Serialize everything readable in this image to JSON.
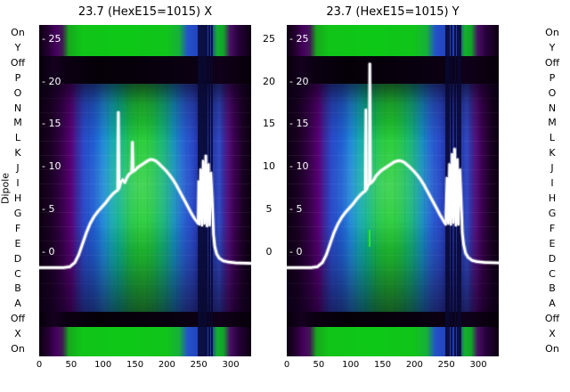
{
  "titles": {
    "left": "23.7 (HexE15=1015) X",
    "right": "23.7 (HexE15=1015) Y"
  },
  "axis": {
    "dipole_label": "Dipole",
    "row_labels": [
      "On",
      "Y",
      "Off",
      "P",
      "O",
      "N",
      "M",
      "L",
      "K",
      "J",
      "I",
      "H",
      "G",
      "F",
      "E",
      "D",
      "C",
      "B",
      "A",
      "Off",
      "X",
      "On"
    ],
    "inner_tick_labels": [
      "- 25",
      "- 20",
      "- 15",
      "- 10",
      "- 5",
      "- 0"
    ],
    "mid_tick_labels": [
      "25",
      "20",
      "15",
      "10",
      "5",
      "0"
    ],
    "value_ticks": [
      25,
      20,
      15,
      10,
      5,
      0
    ],
    "x_ticks": [
      0,
      50,
      100,
      150,
      200,
      250,
      300
    ],
    "x_tick_labels": [
      "0",
      "50",
      "100",
      "150",
      "200",
      "250",
      "300"
    ]
  },
  "colors": {
    "background": "#ffffff",
    "text": "#000000",
    "curve": "#ffffff",
    "inner_tick_text": "#ffffff",
    "cmap_black": "#0a000e",
    "cmap_purple": "#5a0078",
    "cmap_blue": "#2a49c8",
    "cmap_cyan": "#12a4b4",
    "cmap_green": "#1ec832",
    "green_mark": "#2ae62a"
  },
  "chart_data": [
    {
      "type": "heatmap+line",
      "panel": "X",
      "title": "23.7 (HexE15=1015) X",
      "x_range": [
        0,
        332
      ],
      "ylim": [
        -12.3,
        26.6
      ],
      "x_ticks": [
        0,
        50,
        100,
        150,
        200,
        250,
        300
      ],
      "value_ticks": [
        0,
        5,
        10,
        15,
        20,
        25
      ],
      "rows_top_to_bottom": [
        "On",
        "Y",
        "Off",
        "P",
        "O",
        "N",
        "M",
        "L",
        "K",
        "J",
        "I",
        "H",
        "G",
        "F",
        "E",
        "D",
        "C",
        "B",
        "A",
        "Off",
        "X",
        "On"
      ],
      "colormap": "nipy_spectral-like (black-purple-blue-cyan-green)",
      "heatmap_bands": [
        {
          "rows": "On,Y (top)",
          "description": "bright green 55<x<235, blue 240<x<272, green 275<x<288, purple/black edges"
        },
        {
          "rows": "Off (top)",
          "description": "near black"
        },
        {
          "rows": "P..A",
          "description": "broad blob: black/purple edges, blue flanks, cyan 100<x<135, green core 135<x<210, blue 210<x<245, dark columns 248<x<272, purple 285<x<305"
        },
        {
          "rows": "Off (bottom)",
          "description": "near black"
        },
        {
          "rows": "X,On (bottom)",
          "description": "bright green 60<x<235, blue 240<x<272, purple/black edges"
        }
      ],
      "dark_columns_x": [
        249,
        253,
        257,
        261,
        266,
        270
      ],
      "line": {
        "name": "beam profile X",
        "color": "#ffffff",
        "points": [
          [
            0,
            -1.9
          ],
          [
            38,
            -1.9
          ],
          [
            48,
            -1.8
          ],
          [
            56,
            -1.3
          ],
          [
            62,
            -0.4
          ],
          [
            68,
            0.9
          ],
          [
            74,
            2.2
          ],
          [
            80,
            3.3
          ],
          [
            86,
            4.1
          ],
          [
            92,
            4.7
          ],
          [
            98,
            5.2
          ],
          [
            104,
            5.7
          ],
          [
            110,
            6.3
          ],
          [
            116,
            6.8
          ],
          [
            121,
            7.1
          ],
          [
            123,
            7.2
          ],
          [
            124,
            16.3
          ],
          [
            125,
            7.4
          ],
          [
            128,
            8.2
          ],
          [
            131,
            8.4
          ],
          [
            134,
            8.1
          ],
          [
            137,
            8.6
          ],
          [
            140,
            9.0
          ],
          [
            143,
            9.2
          ],
          [
            145,
            9.3
          ],
          [
            146,
            12.8
          ],
          [
            147,
            9.4
          ],
          [
            151,
            9.6
          ],
          [
            155,
            9.9
          ],
          [
            159,
            10.1
          ],
          [
            163,
            10.3
          ],
          [
            167,
            10.5
          ],
          [
            171,
            10.7
          ],
          [
            175,
            10.8
          ],
          [
            179,
            10.75
          ],
          [
            183,
            10.6
          ],
          [
            187,
            10.35
          ],
          [
            191,
            10.05
          ],
          [
            195,
            9.75
          ],
          [
            199,
            9.45
          ],
          [
            204,
            9.0
          ],
          [
            209,
            8.5
          ],
          [
            214,
            7.9
          ],
          [
            219,
            7.2
          ],
          [
            224,
            6.5
          ],
          [
            229,
            5.8
          ],
          [
            234,
            5.1
          ],
          [
            239,
            4.4
          ],
          [
            243,
            3.9
          ],
          [
            247,
            3.5
          ],
          [
            249,
            3.3
          ],
          [
            250,
            8.2
          ],
          [
            251,
            3.2
          ],
          [
            253,
            9.6
          ],
          [
            255,
            3.1
          ],
          [
            257,
            10.6
          ],
          [
            259,
            3.3
          ],
          [
            261,
            11.2
          ],
          [
            263,
            3.0
          ],
          [
            265,
            10.2
          ],
          [
            267,
            3.1
          ],
          [
            269,
            9.2
          ],
          [
            271,
            6.0
          ],
          [
            273,
            2.0
          ],
          [
            275,
            0.6
          ],
          [
            278,
            -0.3
          ],
          [
            282,
            -0.8
          ],
          [
            288,
            -1.1
          ],
          [
            296,
            -1.25
          ],
          [
            308,
            -1.35
          ],
          [
            332,
            -1.4
          ]
        ]
      }
    },
    {
      "type": "heatmap+line",
      "panel": "Y",
      "title": "23.7 (HexE15=1015) Y",
      "x_range": [
        0,
        332
      ],
      "ylim": [
        -12.3,
        26.6
      ],
      "x_ticks": [
        0,
        50,
        100,
        150,
        200,
        250,
        300
      ],
      "value_ticks": [
        0,
        5,
        10,
        15,
        20,
        25
      ],
      "rows_top_to_bottom": [
        "On",
        "Y",
        "Off",
        "P",
        "O",
        "N",
        "M",
        "L",
        "K",
        "J",
        "I",
        "H",
        "G",
        "F",
        "E",
        "D",
        "C",
        "B",
        "A",
        "Off",
        "X",
        "On"
      ],
      "colormap": "nipy_spectral-like (black-purple-blue-cyan-green)",
      "heatmap_bands": [
        {
          "rows": "On,Y (top)",
          "description": "bright green 55<x<235, blue 240<x<272, green 275<x<288, purple/black edges"
        },
        {
          "rows": "Off (top)",
          "description": "near black"
        },
        {
          "rows": "P..A",
          "description": "broad blob: black/purple edges, blue flanks, cyan 100<x<135, green core 135<x<210, blue 210<x<245, dark columns 248<x<272, purple 285<x<305"
        },
        {
          "rows": "Off (bottom)",
          "description": "near black"
        },
        {
          "rows": "X,On (bottom)",
          "description": "bright green 60<x<235, blue 240<x<272, purple/black edges"
        }
      ],
      "dark_columns_x": [
        249,
        253,
        258,
        263,
        268,
        272
      ],
      "green_mark": {
        "x": 130,
        "v_range": [
          0.5,
          2.5
        ]
      },
      "line": {
        "name": "beam profile Y",
        "color": "#ffffff",
        "points": [
          [
            0,
            -1.9
          ],
          [
            38,
            -1.9
          ],
          [
            48,
            -1.8
          ],
          [
            56,
            -1.3
          ],
          [
            62,
            -0.4
          ],
          [
            68,
            0.9
          ],
          [
            74,
            2.2
          ],
          [
            80,
            3.2
          ],
          [
            86,
            4.0
          ],
          [
            92,
            4.6
          ],
          [
            98,
            5.1
          ],
          [
            104,
            5.6
          ],
          [
            110,
            6.2
          ],
          [
            116,
            6.7
          ],
          [
            121,
            7.0
          ],
          [
            123,
            7.1
          ],
          [
            124,
            16.6
          ],
          [
            125,
            7.3
          ],
          [
            127,
            7.7
          ],
          [
            129,
            7.9
          ],
          [
            130,
            22.0
          ],
          [
            131,
            8.0
          ],
          [
            134,
            8.2
          ],
          [
            137,
            8.5
          ],
          [
            140,
            8.9
          ],
          [
            144,
            9.2
          ],
          [
            148,
            9.5
          ],
          [
            152,
            9.7
          ],
          [
            156,
            9.9
          ],
          [
            160,
            10.1
          ],
          [
            164,
            10.3
          ],
          [
            168,
            10.5
          ],
          [
            172,
            10.6
          ],
          [
            176,
            10.65
          ],
          [
            180,
            10.6
          ],
          [
            184,
            10.45
          ],
          [
            188,
            10.2
          ],
          [
            192,
            9.95
          ],
          [
            196,
            9.65
          ],
          [
            200,
            9.35
          ],
          [
            205,
            8.9
          ],
          [
            210,
            8.4
          ],
          [
            215,
            7.8
          ],
          [
            220,
            7.1
          ],
          [
            225,
            6.4
          ],
          [
            230,
            5.7
          ],
          [
            235,
            5.0
          ],
          [
            240,
            4.3
          ],
          [
            244,
            3.8
          ],
          [
            247,
            3.4
          ],
          [
            249,
            3.2
          ],
          [
            251,
            8.6
          ],
          [
            253,
            3.3
          ],
          [
            255,
            10.2
          ],
          [
            257,
            3.2
          ],
          [
            259,
            11.4
          ],
          [
            261,
            3.4
          ],
          [
            263,
            12.0
          ],
          [
            265,
            3.1
          ],
          [
            267,
            10.8
          ],
          [
            269,
            3.2
          ],
          [
            271,
            9.6
          ],
          [
            273,
            6.2
          ],
          [
            275,
            2.2
          ],
          [
            277,
            0.8
          ],
          [
            280,
            -0.2
          ],
          [
            284,
            -0.7
          ],
          [
            290,
            -1.05
          ],
          [
            298,
            -1.2
          ],
          [
            310,
            -1.3
          ],
          [
            332,
            -1.35
          ]
        ]
      }
    }
  ]
}
